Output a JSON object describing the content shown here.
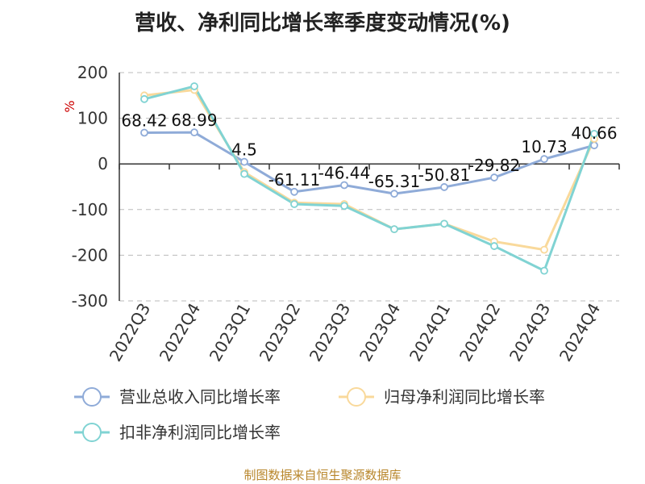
{
  "title": "营收、净利同比增长率季度变动情况(%)",
  "footer": "制图数据来自恒生聚源数据库",
  "colors": {
    "series1": "#8fabd8",
    "series2": "#f9d99b",
    "series3": "#80d3d3",
    "grid": "#bbbbbb",
    "axis": "#333333",
    "unit": "#cc0000"
  },
  "chart_data": {
    "type": "line",
    "title": "营收、净利同比增长率季度变动情况(%)",
    "ylabel": "%",
    "ylim": [
      -300,
      200
    ],
    "yticks": [
      200,
      100,
      0,
      -100,
      -200,
      -300
    ],
    "grid": true,
    "legend_position": "bottom",
    "categories": [
      "2022Q3",
      "2022Q4",
      "2023Q1",
      "2023Q2",
      "2023Q3",
      "2023Q4",
      "2024Q1",
      "2024Q2",
      "2024Q3",
      "2024Q4"
    ],
    "series": [
      {
        "name": "营业总收入同比增长率",
        "color": "#8fabd8",
        "values": [
          68.42,
          68.99,
          4.5,
          -61.11,
          -46.44,
          -65.31,
          -50.81,
          -29.82,
          10.73,
          40.66
        ],
        "labels": [
          "68.42",
          "68.99",
          "4.5",
          "-61.11",
          "-46.44",
          "-65.31",
          "-50.81",
          "-29.82",
          "10.73",
          "40.66"
        ]
      },
      {
        "name": "归母净利润同比增长率",
        "color": "#f9d99b",
        "values": [
          150,
          162,
          -18,
          -85,
          -88,
          -143,
          -131,
          -170,
          -188,
          55
        ]
      },
      {
        "name": "扣非净利润同比增长率",
        "color": "#80d3d3",
        "values": [
          142,
          170,
          -22,
          -88,
          -92,
          -143,
          -131,
          -180,
          -234,
          66
        ]
      }
    ]
  }
}
